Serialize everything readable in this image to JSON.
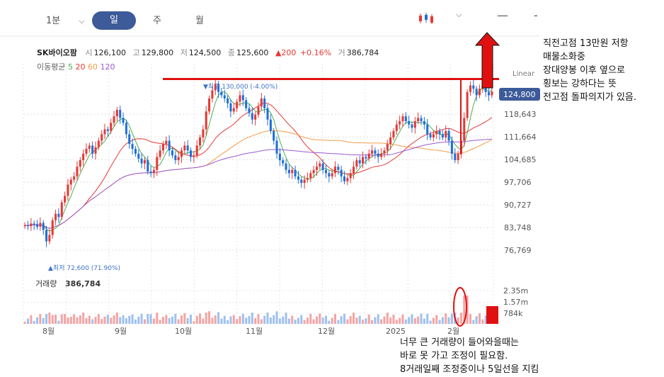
{
  "toolbar": {
    "interval_minute": "1분",
    "tab_day": "일",
    "tab_week": "주",
    "tab_month": "월"
  },
  "stock": {
    "name": "SK바이오팜",
    "open_label": "시",
    "open": "126,100",
    "high_label": "고",
    "high": "129,800",
    "low_label": "저",
    "low": "124,500",
    "close_label": "종",
    "close": "125,600",
    "change": "▲200",
    "change_pct": "+0.16%",
    "volume_label": "거",
    "volume": "386,784"
  },
  "ma_legend": {
    "label": "이동평균",
    "p5": "5",
    "p20": "20",
    "p60": "60",
    "p120": "120"
  },
  "scale_label": "Linear",
  "colors": {
    "up": "#e53935",
    "down": "#1e6fd9",
    "ma5": "#4caf50",
    "ma20": "#e53935",
    "ma60": "#f39c4a",
    "ma120": "#9b59d0",
    "annotation": "#e01010",
    "badge": "#3d5a99"
  },
  "chart_data": {
    "type": "candlestick",
    "y_ticks": [
      "118,643",
      "111,664",
      "104,685",
      "97,706",
      "90,727",
      "83,748",
      "76,769"
    ],
    "y_tick_values": [
      118643,
      111664,
      104685,
      97706,
      90727,
      83748,
      76769
    ],
    "ylim": [
      72000,
      132000
    ],
    "x_labels": [
      "8월",
      "9월",
      "10월",
      "11월",
      "12월",
      "2025",
      "2월"
    ],
    "current_price": "124,800",
    "current_value": 124800,
    "max_label": "▼최고 130,000 (-4.00%)",
    "min_label": "▲최저 72,600 (71.90%)",
    "volume_title": "거래량",
    "volume_value": "386,784",
    "volume_ticks": [
      "2.35m",
      "1.57m",
      "784k"
    ],
    "resistance": 129500,
    "closes": [
      84500,
      84200,
      85000,
      84800,
      84000,
      85200,
      83000,
      79500,
      81500,
      86000,
      88000,
      87000,
      91500,
      93500,
      97000,
      98500,
      99500,
      102500,
      104500,
      106500,
      108000,
      109000,
      106500,
      108500,
      110500,
      112500,
      114000,
      113500,
      116000,
      118000,
      120000,
      117500,
      116000,
      112500,
      109500,
      108000,
      106500,
      105000,
      103500,
      104500,
      101000,
      100500,
      101500,
      105500,
      107500,
      109500,
      110500,
      107500,
      106000,
      104500,
      105500,
      107500,
      109000,
      107500,
      105500,
      106000,
      109000,
      111500,
      114000,
      119500,
      123500,
      126000,
      128000,
      125500,
      124500,
      123500,
      122000,
      119500,
      120500,
      122500,
      124500,
      123000,
      120500,
      119000,
      117000,
      118500,
      121000,
      123500,
      120500,
      117000,
      113500,
      110500,
      106500,
      104500,
      103500,
      101500,
      100500,
      101500,
      99500,
      98500,
      97500,
      98500,
      99000,
      100500,
      101500,
      102500,
      103500,
      101500,
      100500,
      99500,
      100500,
      102500,
      101500,
      99500,
      98000,
      99000,
      100500,
      102500,
      104500,
      103500,
      105500,
      105000,
      106500,
      107500,
      106500,
      105500,
      106500,
      107500,
      109500,
      111500,
      113500,
      115500,
      116500,
      118000,
      116500,
      115500,
      114500,
      116500,
      117500,
      116500,
      115500,
      112500,
      111500,
      112500,
      113500,
      112500,
      111500,
      113500,
      110500,
      106500,
      104500,
      106500,
      110500,
      117500,
      125500,
      127500,
      126500,
      124500,
      126500,
      127500,
      125500,
      124500,
      125600
    ],
    "ma5_note": "moving averages derived from closes"
  },
  "annotations": {
    "right_note": [
      "직전고점 13만원 저항",
      "매물소화중",
      "장대양봉 이후 옆으로",
      "횡보는 강하다는 뜻",
      "전고점 돌파의지가 있음."
    ],
    "bottom_note": [
      "너무 큰 거래량이 들어와을때는",
      "바로 못 가고 조정이 필요함.",
      "8거래일째 조정중이나 5일선을 지킴"
    ]
  }
}
